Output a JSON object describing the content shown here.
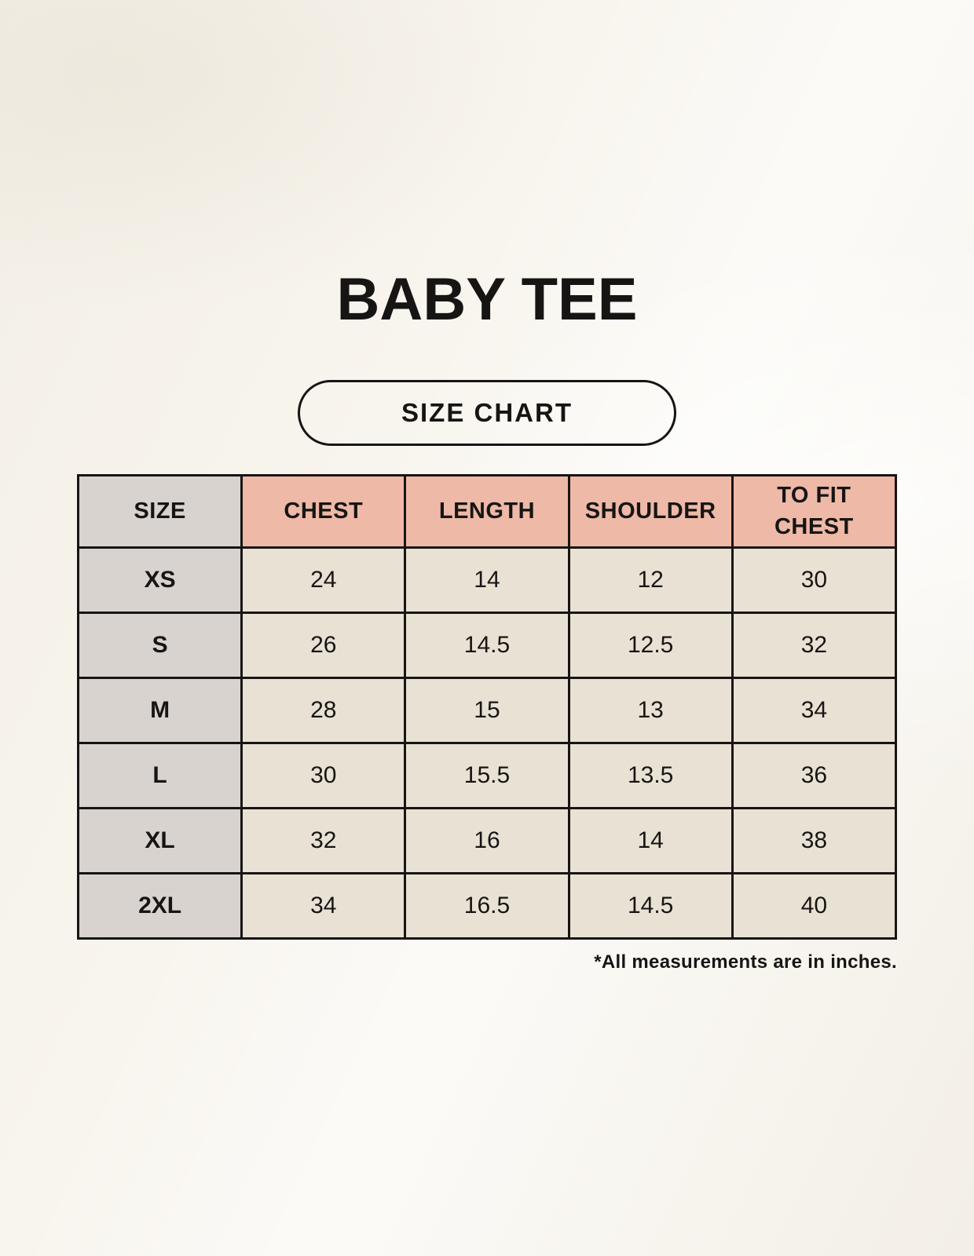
{
  "page": {
    "title": "BABY TEE",
    "button": {
      "label": "SIZE CHART"
    },
    "footnote": "*All measurements are in inches."
  },
  "colors": {
    "background": "#f8f5ee",
    "header_accent": "#eeb9a7",
    "size_column_gray": "#d9d3cf",
    "cell_cream": "#e9e2d4",
    "line_and_text": "#171514"
  },
  "chart_data": {
    "type": "table",
    "title": "BABY TEE",
    "subtitle": "SIZE CHART",
    "columns": [
      "SIZE",
      "CHEST",
      "LENGTH",
      "SHOULDER",
      "TO FIT CHEST"
    ],
    "rows": [
      {
        "size": "XS",
        "chest": "24",
        "length": "14",
        "shoulder": "12",
        "to_fit_chest": "30"
      },
      {
        "size": "S",
        "chest": "26",
        "length": "14.5",
        "shoulder": "12.5",
        "to_fit_chest": "32"
      },
      {
        "size": "M",
        "chest": "28",
        "length": "15",
        "shoulder": "13",
        "to_fit_chest": "34"
      },
      {
        "size": "L",
        "chest": "30",
        "length": "15.5",
        "shoulder": "13.5",
        "to_fit_chest": "36"
      },
      {
        "size": "XL",
        "chest": "32",
        "length": "16",
        "shoulder": "14",
        "to_fit_chest": "38"
      },
      {
        "size": "2XL",
        "chest": "34",
        "length": "16.5",
        "shoulder": "14.5",
        "to_fit_chest": "40"
      }
    ],
    "annotation": "*All measurements are in inches.",
    "layout": {
      "header_fill": "#eeb9a7",
      "size_column_fill": "#d9d3cf",
      "grid": "on"
    }
  }
}
